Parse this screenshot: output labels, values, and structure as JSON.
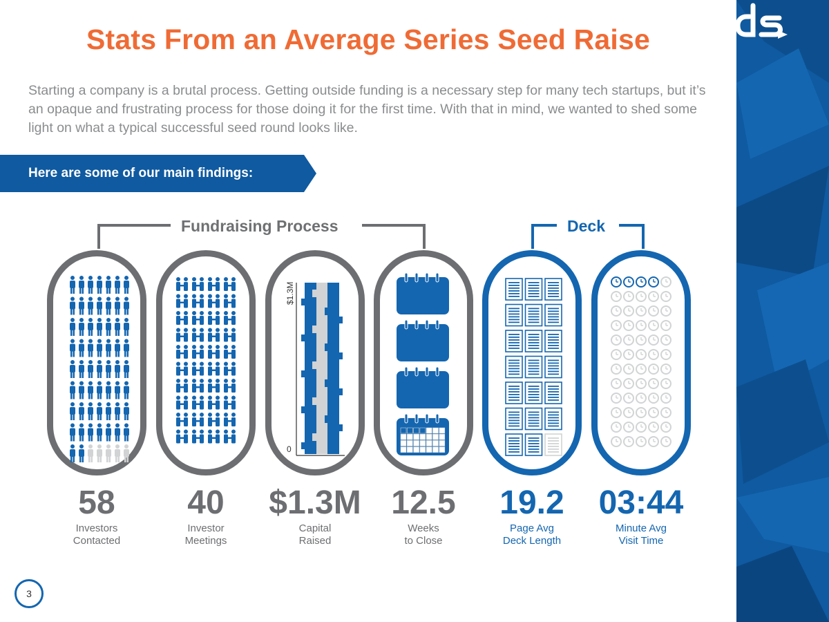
{
  "page": {
    "title": "Stats From an Average Series Seed Raise",
    "intro": "Starting a company is a brutal process. Getting outside funding is a necessary step for many tech startups, but it’s an opaque and frustrating process for those doing it for the first time. With that in mind, we wanted to shed some light on what a typical successful seed round looks like.",
    "banner": "Here are some of our main findings:",
    "page_number": "3"
  },
  "groups": {
    "fundraising": "Fundraising Process",
    "deck": "Deck"
  },
  "capital_axis": {
    "top_label": "$1.3M",
    "bottom_label": "0"
  },
  "stats": [
    {
      "value": "58",
      "label_line1": "Investors",
      "label_line2": "Contacted",
      "color": "gray",
      "icon": "investor-person-icon",
      "icons_shown": 63,
      "icons_filled": 58
    },
    {
      "value": "40",
      "label_line1": "Investor",
      "label_line2": "Meetings",
      "color": "gray",
      "icon": "handshake-icon",
      "icons_shown": 40,
      "icons_filled": 40
    },
    {
      "value": "$1.3M",
      "label_line1": "Capital",
      "label_line2": "Raised",
      "color": "gray",
      "icon": "puzzle-column",
      "fill_fraction": 1.0
    },
    {
      "value": "12.5",
      "label_line1": "Weeks",
      "label_line2": "to Close",
      "color": "gray",
      "icon": "calendar-icon",
      "icons_shown": 4,
      "icons_filled": 3.125
    },
    {
      "value": "19.2",
      "label_line1": "Page Avg",
      "label_line2": "Deck Length",
      "color": "blue",
      "icon": "document-page-icon",
      "icons_shown": 21,
      "icons_filled": 19.2
    },
    {
      "value": "03:44",
      "label_line1": "Minute Avg",
      "label_line2": "Visit Time",
      "color": "blue",
      "icon": "clock-icon",
      "icons_shown": 60,
      "icons_filled": 3.73
    }
  ],
  "colors": {
    "orange": "#ef6b35",
    "blue": "#1466b0",
    "gray": "#6d6e71",
    "light_gray": "#d1d3d4",
    "sidebar": "#0f5aa0"
  },
  "logo_text": "ds"
}
